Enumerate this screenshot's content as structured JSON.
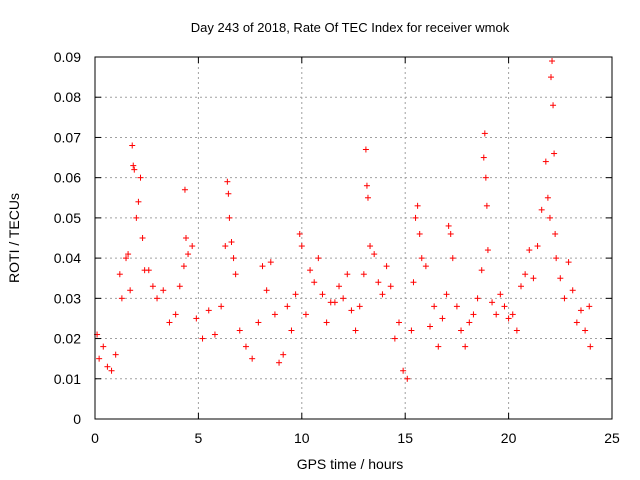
{
  "chart_data": {
    "type": "scatter",
    "title": "Day 243 of 2018, Rate Of TEC Index for receiver wmok",
    "xlabel": "GPS time / hours",
    "ylabel": "ROTI / TECUs",
    "xlim": [
      0,
      25
    ],
    "ylim": [
      0,
      0.09
    ],
    "x_ticks": [
      "0",
      "5",
      "10",
      "15",
      "20",
      "25"
    ],
    "y_ticks": [
      "0",
      "0.01",
      "0.02",
      "0.03",
      "0.04",
      "0.05",
      "0.06",
      "0.07",
      "0.08",
      "0.09"
    ],
    "grid": true,
    "marker": "+",
    "series": [
      {
        "name": "ROTI",
        "color": "#ff0000",
        "points": [
          [
            0.1,
            0.021
          ],
          [
            0.2,
            0.015
          ],
          [
            0.4,
            0.018
          ],
          [
            0.6,
            0.013
          ],
          [
            0.8,
            0.012
          ],
          [
            1.0,
            0.016
          ],
          [
            1.2,
            0.036
          ],
          [
            1.3,
            0.03
          ],
          [
            1.5,
            0.04
          ],
          [
            1.6,
            0.041
          ],
          [
            1.7,
            0.032
          ],
          [
            1.8,
            0.068
          ],
          [
            1.85,
            0.063
          ],
          [
            1.9,
            0.062
          ],
          [
            2.0,
            0.05
          ],
          [
            2.1,
            0.054
          ],
          [
            2.2,
            0.06
          ],
          [
            2.3,
            0.045
          ],
          [
            2.4,
            0.037
          ],
          [
            2.6,
            0.037
          ],
          [
            2.8,
            0.033
          ],
          [
            3.0,
            0.03
          ],
          [
            3.3,
            0.032
          ],
          [
            3.6,
            0.024
          ],
          [
            3.9,
            0.026
          ],
          [
            4.1,
            0.033
          ],
          [
            4.3,
            0.038
          ],
          [
            4.35,
            0.057
          ],
          [
            4.4,
            0.045
          ],
          [
            4.5,
            0.041
          ],
          [
            4.7,
            0.043
          ],
          [
            4.9,
            0.025
          ],
          [
            5.2,
            0.02
          ],
          [
            5.5,
            0.027
          ],
          [
            5.8,
            0.021
          ],
          [
            6.1,
            0.028
          ],
          [
            6.3,
            0.043
          ],
          [
            6.4,
            0.059
          ],
          [
            6.45,
            0.056
          ],
          [
            6.5,
            0.05
          ],
          [
            6.6,
            0.044
          ],
          [
            6.7,
            0.04
          ],
          [
            6.8,
            0.036
          ],
          [
            7.0,
            0.022
          ],
          [
            7.3,
            0.018
          ],
          [
            7.6,
            0.015
          ],
          [
            7.9,
            0.024
          ],
          [
            8.1,
            0.038
          ],
          [
            8.3,
            0.032
          ],
          [
            8.5,
            0.039
          ],
          [
            8.7,
            0.026
          ],
          [
            8.9,
            0.014
          ],
          [
            9.1,
            0.016
          ],
          [
            9.3,
            0.028
          ],
          [
            9.5,
            0.022
          ],
          [
            9.7,
            0.031
          ],
          [
            9.9,
            0.046
          ],
          [
            10.0,
            0.043
          ],
          [
            10.2,
            0.026
          ],
          [
            10.4,
            0.037
          ],
          [
            10.6,
            0.034
          ],
          [
            10.8,
            0.04
          ],
          [
            11.0,
            0.031
          ],
          [
            11.2,
            0.024
          ],
          [
            11.4,
            0.029
          ],
          [
            11.6,
            0.029
          ],
          [
            11.8,
            0.033
          ],
          [
            12.0,
            0.03
          ],
          [
            12.2,
            0.036
          ],
          [
            12.4,
            0.027
          ],
          [
            12.6,
            0.022
          ],
          [
            12.8,
            0.028
          ],
          [
            13.0,
            0.036
          ],
          [
            13.1,
            0.067
          ],
          [
            13.15,
            0.058
          ],
          [
            13.2,
            0.055
          ],
          [
            13.3,
            0.043
          ],
          [
            13.5,
            0.041
          ],
          [
            13.7,
            0.034
          ],
          [
            13.9,
            0.031
          ],
          [
            14.1,
            0.038
          ],
          [
            14.3,
            0.033
          ],
          [
            14.5,
            0.02
          ],
          [
            14.7,
            0.024
          ],
          [
            14.9,
            0.012
          ],
          [
            15.1,
            0.01
          ],
          [
            15.3,
            0.022
          ],
          [
            15.4,
            0.034
          ],
          [
            15.5,
            0.05
          ],
          [
            15.6,
            0.053
          ],
          [
            15.7,
            0.046
          ],
          [
            15.8,
            0.04
          ],
          [
            16.0,
            0.038
          ],
          [
            16.2,
            0.023
          ],
          [
            16.4,
            0.028
          ],
          [
            16.6,
            0.018
          ],
          [
            16.8,
            0.025
          ],
          [
            17.0,
            0.031
          ],
          [
            17.1,
            0.048
          ],
          [
            17.2,
            0.046
          ],
          [
            17.3,
            0.04
          ],
          [
            17.5,
            0.028
          ],
          [
            17.7,
            0.022
          ],
          [
            17.9,
            0.018
          ],
          [
            18.1,
            0.024
          ],
          [
            18.3,
            0.026
          ],
          [
            18.5,
            0.03
          ],
          [
            18.7,
            0.037
          ],
          [
            18.8,
            0.065
          ],
          [
            18.85,
            0.071
          ],
          [
            18.9,
            0.06
          ],
          [
            18.95,
            0.053
          ],
          [
            19.0,
            0.042
          ],
          [
            19.2,
            0.029
          ],
          [
            19.4,
            0.026
          ],
          [
            19.6,
            0.031
          ],
          [
            19.8,
            0.028
          ],
          [
            20.0,
            0.025
          ],
          [
            20.2,
            0.026
          ],
          [
            20.4,
            0.022
          ],
          [
            20.6,
            0.033
          ],
          [
            20.8,
            0.036
          ],
          [
            21.0,
            0.042
          ],
          [
            21.2,
            0.035
          ],
          [
            21.4,
            0.043
          ],
          [
            21.6,
            0.052
          ],
          [
            21.8,
            0.064
          ],
          [
            21.9,
            0.055
          ],
          [
            22.0,
            0.05
          ],
          [
            22.05,
            0.085
          ],
          [
            22.1,
            0.089
          ],
          [
            22.15,
            0.078
          ],
          [
            22.2,
            0.066
          ],
          [
            22.25,
            0.046
          ],
          [
            22.3,
            0.04
          ],
          [
            22.5,
            0.035
          ],
          [
            22.7,
            0.03
          ],
          [
            22.9,
            0.039
          ],
          [
            23.1,
            0.032
          ],
          [
            23.3,
            0.024
          ],
          [
            23.5,
            0.027
          ],
          [
            23.7,
            0.022
          ],
          [
            23.9,
            0.028
          ],
          [
            23.95,
            0.018
          ]
        ]
      }
    ]
  }
}
